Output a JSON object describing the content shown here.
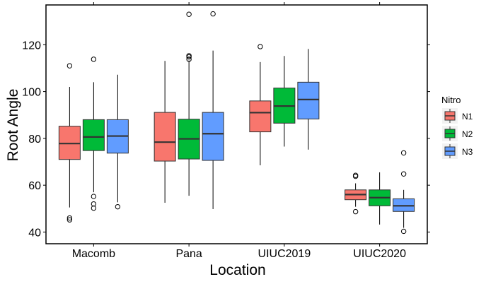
{
  "chart_data": {
    "type": "boxplot",
    "xlabel": "Location",
    "ylabel": "Root Angle",
    "ylim": [
      35,
      137
    ],
    "yticks": [
      40,
      60,
      80,
      100,
      120
    ],
    "grid": false,
    "legend": {
      "title": "Nitro",
      "placement": "right"
    },
    "categories": [
      "Macomb",
      "Pana",
      "UIUC2019",
      "UIUC2020"
    ],
    "series": [
      {
        "name": "N1",
        "color": "#F8766D",
        "boxes": [
          {
            "min": 50.5,
            "q1": 71.0,
            "median": 77.8,
            "q3": 85.2,
            "max": 102.0,
            "outliers": [
              45.2,
              46.0,
              111.0
            ]
          },
          {
            "min": 52.5,
            "q1": 70.3,
            "median": 78.4,
            "q3": 91.1,
            "max": 113.1,
            "outliers": []
          },
          {
            "min": 68.5,
            "q1": 82.8,
            "median": 91.0,
            "q3": 96.0,
            "max": 112.6,
            "outliers": [
              119.2
            ]
          },
          {
            "min": 50.8,
            "q1": 53.8,
            "median": 56.0,
            "q3": 58.0,
            "max": 60.8,
            "outliers": [
              48.7,
              63.8,
              64.2
            ]
          }
        ]
      },
      {
        "name": "N2",
        "color": "#00BA38",
        "boxes": [
          {
            "min": 57.0,
            "q1": 74.8,
            "median": 80.6,
            "q3": 88.0,
            "max": 104.0,
            "outliers": [
              50.2,
              52.0,
              55.2,
              113.8
            ]
          },
          {
            "min": 55.5,
            "q1": 71.2,
            "median": 79.8,
            "q3": 88.2,
            "max": 113.3,
            "outliers": [
              113.8,
              114.8,
              115.3,
              133.0
            ]
          },
          {
            "min": 76.5,
            "q1": 86.5,
            "median": 93.8,
            "q3": 101.5,
            "max": 115.2,
            "outliers": []
          },
          {
            "min": 43.2,
            "q1": 51.2,
            "median": 54.7,
            "q3": 58.0,
            "max": 65.5,
            "outliers": []
          }
        ]
      },
      {
        "name": "N3",
        "color": "#619CFF",
        "boxes": [
          {
            "min": 52.7,
            "q1": 73.7,
            "median": 81.0,
            "q3": 88.0,
            "max": 107.2,
            "outliers": [
              50.8
            ]
          },
          {
            "min": 49.8,
            "q1": 70.6,
            "median": 82.0,
            "q3": 91.1,
            "max": 117.5,
            "outliers": [
              133.2
            ]
          },
          {
            "min": 75.2,
            "q1": 88.3,
            "median": 96.6,
            "q3": 104.0,
            "max": 118.2,
            "outliers": []
          },
          {
            "min": 41.8,
            "q1": 48.8,
            "median": 51.2,
            "q3": 54.2,
            "max": 58.0,
            "outliers": [
              40.3,
              64.8,
              73.8
            ]
          }
        ]
      }
    ]
  }
}
